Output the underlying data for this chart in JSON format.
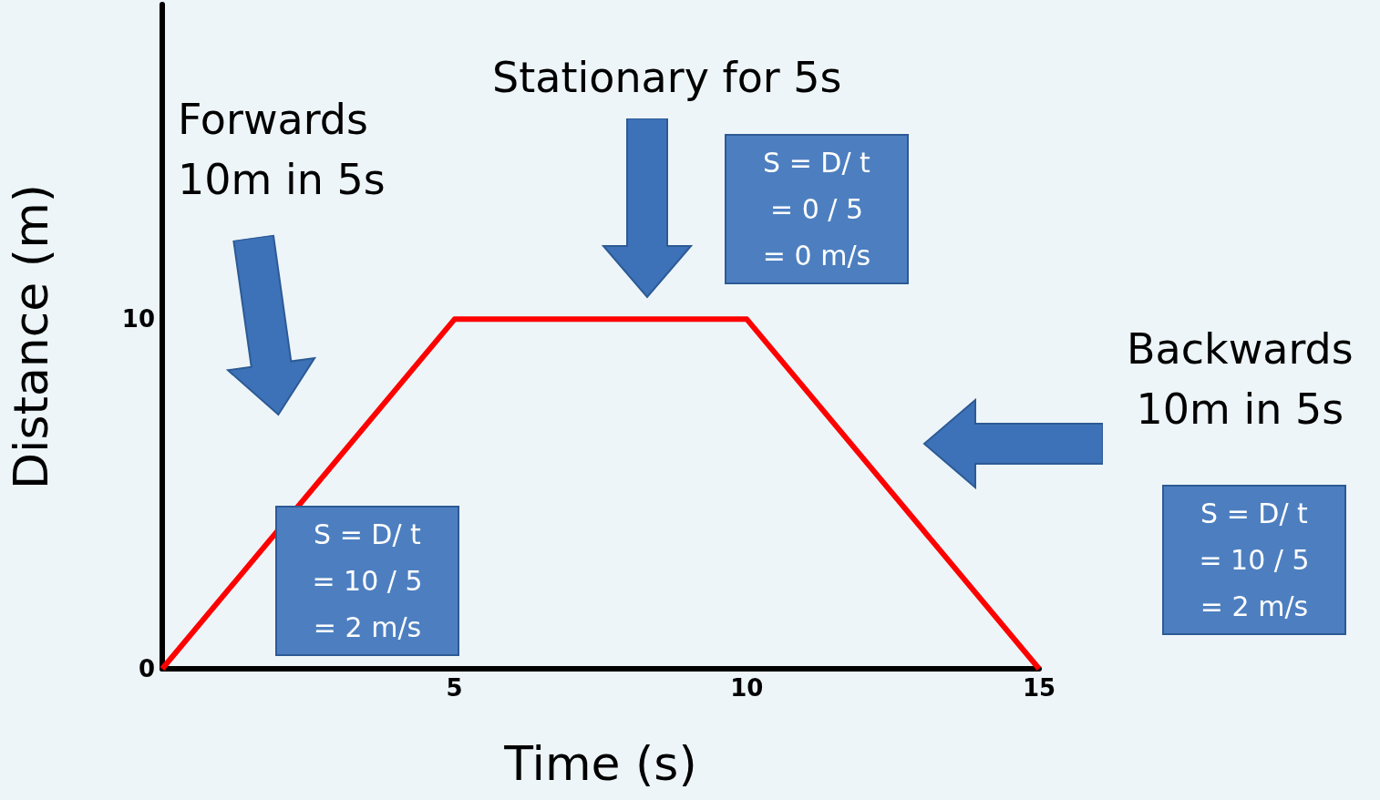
{
  "chart_data": {
    "type": "line",
    "xlabel": "Time (s)",
    "ylabel": "Distance (m)",
    "x": [
      0,
      5,
      10,
      15
    ],
    "series": [
      {
        "color": "#ff0000",
        "values": [
          0,
          10,
          10,
          0
        ]
      }
    ],
    "xlim": [
      0,
      15
    ],
    "xticks": [
      5,
      10,
      15
    ],
    "ylim": [
      0,
      19
    ],
    "yticks": [
      0,
      10
    ],
    "grid": false,
    "marker": "none",
    "line_style": "solid",
    "annotations": [
      "Forwards\n10m in 5s",
      "Stationary for 5s",
      "Backwards\n10m in 5s",
      "S = D/ t\n= 10 / 5\n= 2 m/s",
      "S = D/ t\n= 0 / 5\n= 0 m/s",
      "S = D/ t\n= 10 / 5\n= 2 m/s"
    ]
  }
}
